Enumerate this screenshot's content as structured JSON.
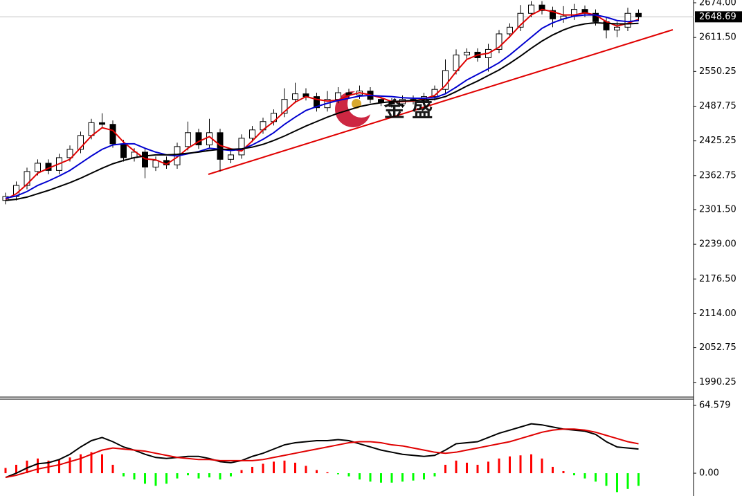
{
  "chart_data": [
    {
      "type": "candlestick",
      "ylim": [
        1965,
        2679
      ],
      "yticks": [
        {
          "value": 2674,
          "label": "2674.00"
        },
        {
          "value": 2611.5,
          "label": "2611.50"
        },
        {
          "value": 2550.25,
          "label": "2550.25"
        },
        {
          "value": 2487.75,
          "label": "2487.75"
        },
        {
          "value": 2425.25,
          "label": "2425.25"
        },
        {
          "value": 2362.75,
          "label": "2362.75"
        },
        {
          "value": 2301.5,
          "label": "2301.50"
        },
        {
          "value": 2239,
          "label": "2239.00"
        },
        {
          "value": 2176.5,
          "label": "2176.50"
        },
        {
          "value": 2114,
          "label": "2114.00"
        },
        {
          "value": 2052.75,
          "label": "2052.75"
        },
        {
          "value": 1990.25,
          "label": "1990.25"
        }
      ],
      "last_price": 2648.69,
      "watermark": "金 盛",
      "up_color": "#ffffff",
      "down_color": "#000000",
      "candles": [
        [
          2318,
          2332,
          2311,
          2325
        ],
        [
          2325,
          2352,
          2318,
          2345
        ],
        [
          2345,
          2377,
          2338,
          2370
        ],
        [
          2370,
          2392,
          2363,
          2385
        ],
        [
          2385,
          2392,
          2365,
          2372
        ],
        [
          2372,
          2402,
          2365,
          2395
        ],
        [
          2395,
          2417,
          2388,
          2410
        ],
        [
          2410,
          2442,
          2403,
          2435
        ],
        [
          2435,
          2465,
          2428,
          2458
        ],
        [
          2458,
          2475,
          2448,
          2455
        ],
        [
          2455,
          2462,
          2413,
          2420
        ],
        [
          2420,
          2427,
          2388,
          2395
        ],
        [
          2395,
          2412,
          2388,
          2405
        ],
        [
          2405,
          2412,
          2358,
          2378
        ],
        [
          2378,
          2397,
          2371,
          2390
        ],
        [
          2390,
          2397,
          2375,
          2382
        ],
        [
          2382,
          2422,
          2375,
          2415
        ],
        [
          2415,
          2460,
          2408,
          2440
        ],
        [
          2440,
          2447,
          2411,
          2418
        ],
        [
          2418,
          2465,
          2411,
          2440
        ],
        [
          2440,
          2447,
          2370,
          2392
        ],
        [
          2392,
          2407,
          2385,
          2400
        ],
        [
          2400,
          2437,
          2393,
          2430
        ],
        [
          2430,
          2452,
          2423,
          2445
        ],
        [
          2445,
          2467,
          2438,
          2460
        ],
        [
          2460,
          2482,
          2453,
          2475
        ],
        [
          2475,
          2520,
          2468,
          2500
        ],
        [
          2500,
          2530,
          2493,
          2510
        ],
        [
          2510,
          2520,
          2498,
          2505
        ],
        [
          2505,
          2512,
          2478,
          2485
        ],
        [
          2485,
          2515,
          2478,
          2500
        ],
        [
          2500,
          2522,
          2493,
          2512
        ],
        [
          2512,
          2519,
          2501,
          2508
        ],
        [
          2508,
          2525,
          2501,
          2515
        ],
        [
          2515,
          2522,
          2493,
          2500
        ],
        [
          2500,
          2507,
          2488,
          2495
        ],
        [
          2495,
          2502,
          2485,
          2492
        ],
        [
          2492,
          2507,
          2485,
          2500
        ],
        [
          2500,
          2507,
          2491,
          2498
        ],
        [
          2498,
          2512,
          2491,
          2505
        ],
        [
          2505,
          2525,
          2498,
          2518
        ],
        [
          2518,
          2572,
          2511,
          2552
        ],
        [
          2552,
          2590,
          2545,
          2580
        ],
        [
          2580,
          2592,
          2573,
          2585
        ],
        [
          2585,
          2592,
          2568,
          2575
        ],
        [
          2575,
          2600,
          2550,
          2590
        ],
        [
          2590,
          2625,
          2583,
          2618
        ],
        [
          2618,
          2637,
          2611,
          2630
        ],
        [
          2630,
          2670,
          2623,
          2655
        ],
        [
          2655,
          2677,
          2648,
          2670
        ],
        [
          2670,
          2677,
          2653,
          2660
        ],
        [
          2660,
          2667,
          2630,
          2645
        ],
        [
          2645,
          2668,
          2638,
          2650
        ],
        [
          2650,
          2672,
          2643,
          2662
        ],
        [
          2662,
          2669,
          2648,
          2655
        ],
        [
          2655,
          2662,
          2633,
          2640
        ],
        [
          2640,
          2647,
          2610,
          2625
        ],
        [
          2625,
          2640,
          2612,
          2630
        ],
        [
          2630,
          2665,
          2623,
          2655
        ],
        [
          2655,
          2662,
          2641,
          2648.69
        ]
      ],
      "series": [
        {
          "color": "#e00000",
          "values": [
            2320,
            2330,
            2347,
            2367,
            2376,
            2384,
            2392,
            2413,
            2434,
            2449,
            2444,
            2423,
            2407,
            2393,
            2391,
            2383,
            2396,
            2412,
            2424,
            2433,
            2417,
            2411,
            2407,
            2425,
            2445,
            2460,
            2478,
            2495,
            2505,
            2500,
            2497,
            2499,
            2507,
            2512,
            2508,
            2503,
            2496,
            2496,
            2497,
            2501,
            2507,
            2525,
            2550,
            2572,
            2580,
            2583,
            2594,
            2613,
            2634,
            2652,
            2662,
            2658,
            2652,
            2652,
            2656,
            2652,
            2640,
            2632,
            2637,
            2644
          ]
        },
        {
          "color": "#0000d0",
          "values": [
            2322,
            2326,
            2334,
            2345,
            2353,
            2362,
            2372,
            2385,
            2398,
            2410,
            2418,
            2420,
            2420,
            2412,
            2405,
            2400,
            2398,
            2402,
            2406,
            2412,
            2410,
            2408,
            2410,
            2418,
            2428,
            2440,
            2455,
            2468,
            2480,
            2487,
            2493,
            2498,
            2502,
            2506,
            2507,
            2506,
            2505,
            2503,
            2502,
            2502,
            2503,
            2510,
            2522,
            2535,
            2545,
            2555,
            2566,
            2580,
            2596,
            2612,
            2628,
            2638,
            2645,
            2650,
            2652,
            2652,
            2648,
            2642,
            2640,
            2642
          ]
        },
        {
          "color": "#000000",
          "values": [
            2318,
            2320,
            2324,
            2330,
            2336,
            2343,
            2350,
            2358,
            2367,
            2376,
            2384,
            2390,
            2395,
            2398,
            2400,
            2400,
            2401,
            2403,
            2405,
            2408,
            2410,
            2410,
            2411,
            2414,
            2419,
            2426,
            2434,
            2443,
            2452,
            2460,
            2468,
            2475,
            2481,
            2487,
            2491,
            2494,
            2496,
            2497,
            2498,
            2499,
            2500,
            2505,
            2514,
            2524,
            2533,
            2543,
            2553,
            2565,
            2578,
            2592,
            2605,
            2616,
            2625,
            2632,
            2636,
            2638,
            2637,
            2636,
            2636,
            2637
          ]
        }
      ]
    },
    {
      "type": "macd",
      "ylim": [
        -21.7,
        70.5
      ],
      "yticks": [
        64.579,
        {
          "value": 0,
          "label": "0.00"
        }
      ],
      "pos_color": "#ff0000",
      "neg_color": "#00ff00",
      "histogram": [
        5,
        8,
        12,
        14,
        12,
        13,
        15,
        18,
        20,
        18,
        8,
        -3,
        -6,
        -10,
        -12,
        -10,
        -5,
        -2,
        -5,
        -4,
        -6,
        -3,
        3,
        6,
        9,
        11,
        12,
        10,
        7,
        3,
        1,
        -1,
        -3,
        -6,
        -8,
        -9,
        -9,
        -8,
        -7,
        -6,
        -3,
        8,
        12,
        10,
        8,
        11,
        14,
        16,
        17,
        18,
        14,
        6,
        2,
        -2,
        -5,
        -8,
        -12,
        -18,
        -15,
        -12
      ],
      "series": [
        {
          "color": "#000000",
          "values": [
            -4,
            0,
            5,
            9,
            10,
            13,
            18,
            25,
            31,
            34,
            30,
            25,
            22,
            18,
            15,
            14,
            15,
            16,
            16,
            14,
            11,
            10,
            12,
            16,
            19,
            23,
            27,
            29,
            30,
            31,
            31,
            32,
            31,
            28,
            25,
            22,
            20,
            18,
            17,
            16,
            17,
            22,
            28,
            29,
            30,
            34,
            38,
            41,
            44,
            47,
            46,
            44,
            42,
            41,
            40,
            37,
            30,
            25,
            24,
            23
          ]
        },
        {
          "color": "#e00000",
          "values": [
            -4,
            -2,
            1,
            4,
            6,
            8,
            11,
            14,
            18,
            22,
            24,
            23,
            22,
            21,
            19,
            17,
            15,
            14,
            13,
            13,
            12,
            12,
            12,
            12,
            13,
            15,
            17,
            19,
            21,
            23,
            25,
            27,
            29,
            30,
            30,
            29,
            27,
            26,
            24,
            22,
            20,
            19,
            20,
            22,
            24,
            26,
            28,
            30,
            33,
            36,
            39,
            41,
            42,
            42,
            41,
            39,
            36,
            33,
            30,
            28
          ]
        }
      ]
    }
  ]
}
